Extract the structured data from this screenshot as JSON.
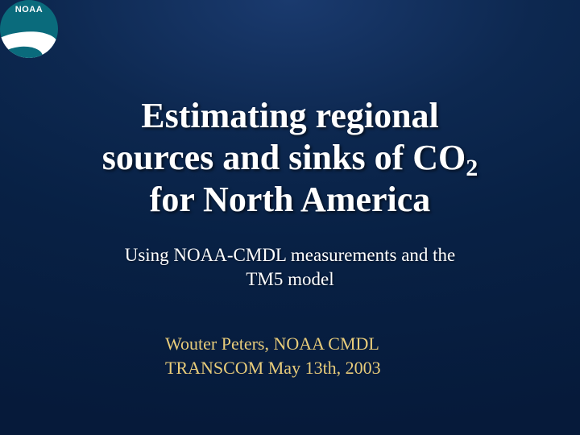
{
  "logo": {
    "text": "NOAA",
    "circle_color": "#0a6b7c",
    "swoosh_color": "#ffffff"
  },
  "title": {
    "line1": "Estimating regional",
    "line2_pre": "sources and sinks of CO",
    "line2_sub": "2",
    "line3": "for North America",
    "color": "#ffffff",
    "fontsize": 44
  },
  "subtitle": {
    "line1": "Using NOAA-CMDL measurements and the",
    "line2": "TM5 model",
    "color": "#ffffff",
    "fontsize": 23
  },
  "author": {
    "line1": "Wouter Peters, NOAA CMDL",
    "line2": "TRANSCOM May 13th, 2003",
    "color": "#e8cc7a",
    "fontsize": 22
  },
  "background": {
    "gradient_inner": "#1a3a6e",
    "gradient_outer": "#061a3a"
  }
}
